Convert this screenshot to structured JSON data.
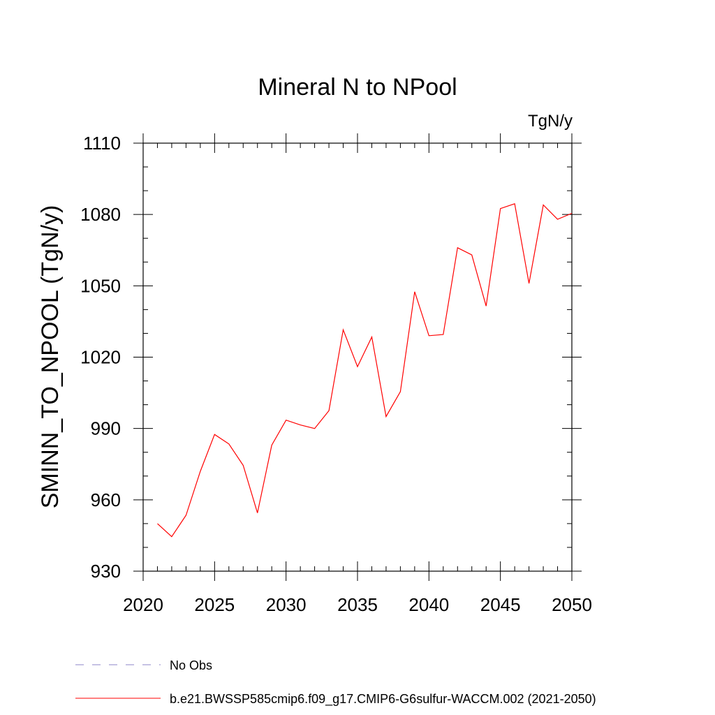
{
  "chart_data": {
    "type": "line",
    "title": "Mineral N to NPool",
    "units": "TgN/y",
    "ylabel": "SMINN_TO_NPOOL  (TgN/y)",
    "xlim": [
      2020,
      2050
    ],
    "ylim": [
      930,
      1110
    ],
    "x_ticks": [
      2020,
      2025,
      2030,
      2035,
      2040,
      2045,
      2050
    ],
    "y_ticks": [
      930,
      960,
      990,
      1020,
      1050,
      1080,
      1110
    ],
    "x_minor_step": 1,
    "y_minor_step": 10,
    "grid": false,
    "legend_position": "bottom-left",
    "legend": [
      {
        "label": "No Obs",
        "color": "#8e84c8",
        "style": "dashed"
      },
      {
        "label": "b.e21.BWSSP585cmip6.f09_g17.CMIP6-G6sulfur-WACCM.002 (2021-2050)",
        "color": "#ff0000",
        "style": "solid"
      }
    ],
    "series": [
      {
        "name": "b.e21.BWSSP585cmip6.f09_g17.CMIP6-G6sulfur-WACCM.002 (2021-2050)",
        "color": "#ff0000",
        "x": [
          2021,
          2022,
          2023,
          2024,
          2025,
          2026,
          2027,
          2028,
          2029,
          2030,
          2031,
          2032,
          2033,
          2034,
          2035,
          2036,
          2037,
          2038,
          2039,
          2040,
          2041,
          2042,
          2043,
          2044,
          2045,
          2046,
          2047,
          2048,
          2049,
          2050
        ],
        "y": [
          950.0,
          944.5,
          953.5,
          972.0,
          987.5,
          983.5,
          974.5,
          954.5,
          983.0,
          993.5,
          991.5,
          990.0,
          997.5,
          1031.5,
          1016.0,
          1028.5,
          995.0,
          1005.5,
          1047.5,
          1029.0,
          1029.5,
          1066.0,
          1063.0,
          1041.5,
          1082.5,
          1084.5,
          1051.0,
          1084.0,
          1078.0,
          1080.5
        ]
      }
    ]
  }
}
